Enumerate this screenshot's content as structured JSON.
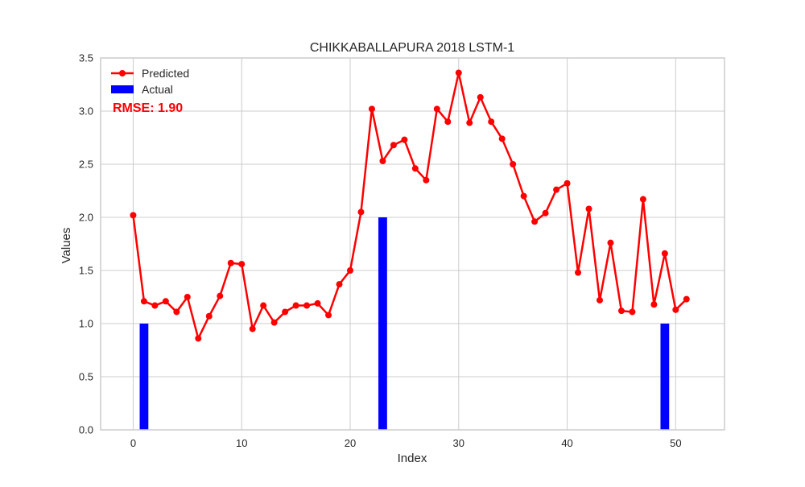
{
  "chart_data": {
    "type": "bar+line",
    "title": "CHIKKABALLAPURA 2018 LSTM-1",
    "xlabel": "Index",
    "ylabel": "Values",
    "xlim": [
      -3,
      54.5
    ],
    "ylim": [
      0,
      3.5
    ],
    "xticks": [
      0,
      10,
      20,
      30,
      40,
      50
    ],
    "yticks": [
      0.0,
      0.5,
      1.0,
      1.5,
      2.0,
      2.5,
      3.0,
      3.5
    ],
    "xtick_labels": [
      "0",
      "10",
      "20",
      "30",
      "40",
      "50"
    ],
    "ytick_labels": [
      "0.0",
      "0.5",
      "1.0",
      "1.5",
      "2.0",
      "2.5",
      "3.0",
      "3.5"
    ],
    "grid": true,
    "legend_position": "top-left",
    "annotation": "RMSE: 1.90",
    "series": [
      {
        "name": "Predicted",
        "kind": "line",
        "color": "#ff0000",
        "marker": "circle",
        "x": [
          0,
          1,
          2,
          3,
          4,
          5,
          6,
          7,
          8,
          9,
          10,
          11,
          12,
          13,
          14,
          15,
          16,
          17,
          18,
          19,
          20,
          21,
          22,
          23,
          24,
          25,
          26,
          27,
          28,
          29,
          30,
          31,
          32,
          33,
          34,
          35,
          36,
          37,
          38,
          39,
          40,
          41,
          42,
          43,
          44,
          45,
          46,
          47,
          48,
          49,
          50,
          51
        ],
        "values": [
          2.02,
          1.21,
          1.17,
          1.21,
          1.11,
          1.25,
          0.86,
          1.07,
          1.26,
          1.57,
          1.56,
          0.95,
          1.17,
          1.01,
          1.11,
          1.17,
          1.17,
          1.19,
          1.08,
          1.37,
          1.5,
          2.05,
          3.02,
          2.53,
          2.68,
          2.73,
          2.46,
          2.35,
          3.02,
          2.9,
          3.36,
          2.89,
          3.13,
          2.9,
          2.74,
          2.5,
          2.2,
          1.96,
          2.04,
          2.26,
          2.32,
          1.48,
          2.08,
          1.22,
          1.76,
          1.12,
          1.11,
          2.17,
          1.18,
          1.66,
          1.13,
          1.23
        ]
      },
      {
        "name": "Actual",
        "kind": "bar",
        "color": "#0000ff",
        "x": [
          1,
          23,
          49
        ],
        "values": [
          1.0,
          2.0,
          1.0
        ]
      }
    ]
  }
}
